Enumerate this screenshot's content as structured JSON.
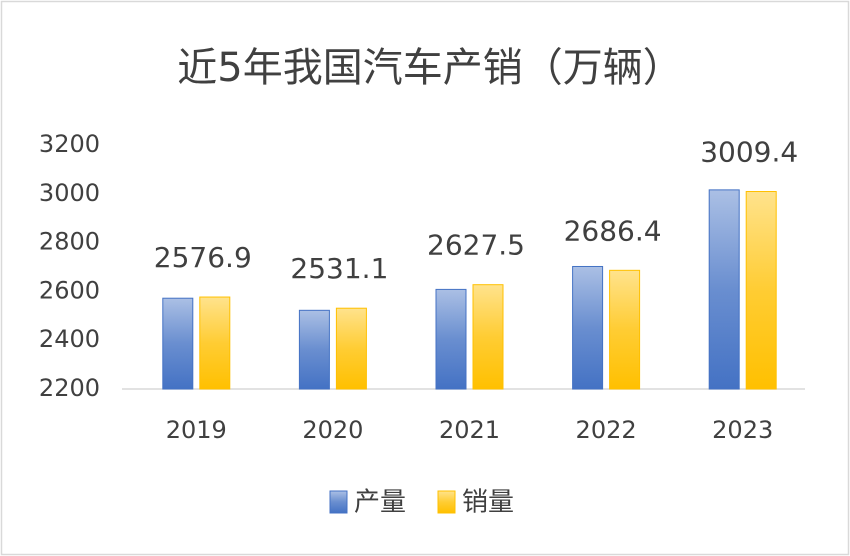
{
  "chart_data": {
    "type": "bar",
    "title": "近5年我国汽车产销（万辆）",
    "categories": [
      "2019",
      "2020",
      "2021",
      "2022",
      "2023"
    ],
    "series": [
      {
        "name": "产量",
        "color": "#4472c4",
        "values": [
          2572.1,
          2522.5,
          2608.2,
          2702.1,
          3016.1
        ]
      },
      {
        "name": "销量",
        "color": "#ffc000",
        "values": [
          2576.9,
          2531.1,
          2627.5,
          2686.4,
          3009.4
        ],
        "data_labels": true
      }
    ],
    "ylim": [
      2200,
      3200
    ],
    "yticks": [
      2200,
      2400,
      2600,
      2800,
      3000,
      3200
    ],
    "grid": false,
    "legend": "bottom"
  }
}
